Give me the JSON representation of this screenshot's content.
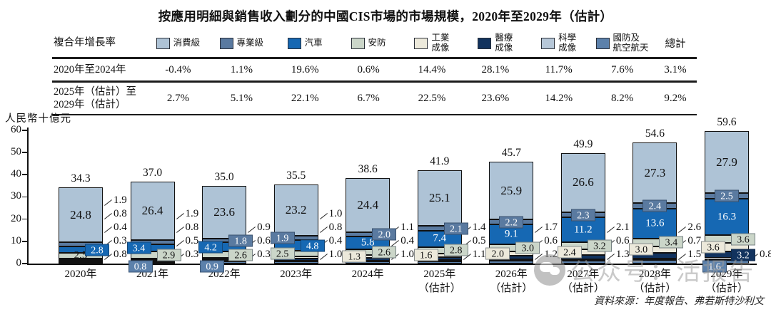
{
  "title": "按應用明細與銷售收入劃分的中國CIS市場的市場規模，2020年至2029年（估計）",
  "table": {
    "row_header_label": "複合年增長率",
    "total_label": "總計",
    "legend": [
      {
        "label": "消費級",
        "color": "#aec3d6"
      },
      {
        "label": "專業級",
        "color": "#5a7aa0"
      },
      {
        "label": "汽車",
        "color": "#1668b3"
      },
      {
        "label": "安防",
        "color": "#cbd6c9"
      },
      {
        "label": "工業\n成像",
        "color": "#ece9db"
      },
      {
        "label": "醫療\n成像",
        "color": "#12335e"
      },
      {
        "label": "科學\n成像",
        "color": "#b6c7d8"
      },
      {
        "label": "國防及\n航空航天",
        "color": "#5c81ab"
      }
    ],
    "rows": [
      {
        "label": "2020年至2024年",
        "values": [
          "-0.4%",
          "1.1%",
          "19.6%",
          "0.6%",
          "14.4%",
          "28.1%",
          "11.7%",
          "7.6%",
          "3.1%"
        ]
      },
      {
        "label": "2025年（估計）至\n2029年（估計）",
        "values": [
          "2.7%",
          "5.1%",
          "22.1%",
          "6.7%",
          "22.5%",
          "23.6%",
          "14.2%",
          "8.2%",
          "9.2%"
        ]
      }
    ]
  },
  "chart_data": {
    "type": "bar",
    "stacked": true,
    "title": "按應用明細與銷售收入劃分的中國CIS市場的市場規模，2020年至2029年（估計）",
    "ylabel": "人民幣十億元",
    "ylim": [
      0,
      60
    ],
    "yticks": [
      0,
      10,
      20,
      30,
      40,
      50,
      60
    ],
    "grid": false,
    "legend_position": "top",
    "categories": [
      "2020年",
      "2021年",
      "2022年",
      "2023年",
      "2024年",
      "2025年\n（估計）",
      "2026年\n（估計）",
      "2027年\n（估計）",
      "2028年\n（估計）",
      "2029年\n（估計）"
    ],
    "totals": [
      34.3,
      37.0,
      35.0,
      35.5,
      38.6,
      41.9,
      45.7,
      49.9,
      54.6,
      59.6
    ],
    "series": [
      {
        "key": "con",
        "name": "消費級",
        "color": "#aec3d6",
        "values": [
          24.8,
          26.4,
          23.6,
          23.2,
          24.4,
          25.1,
          25.9,
          26.6,
          27.3,
          27.9
        ]
      },
      {
        "key": "pro",
        "name": "專業級",
        "color": "#5a7aa0",
        "values": [
          1.9,
          1.9,
          1.8,
          1.9,
          2.0,
          2.1,
          2.2,
          2.3,
          2.4,
          2.5
        ]
      },
      {
        "key": "aut",
        "name": "汽車",
        "color": "#1668b3",
        "values": [
          2.8,
          3.4,
          4.2,
          4.8,
          5.8,
          7.4,
          9.1,
          11.2,
          13.6,
          16.3
        ]
      },
      {
        "key": "sec",
        "name": "安防",
        "color": "#cbd6c9",
        "values": [
          2.5,
          2.9,
          2.6,
          2.5,
          2.6,
          2.8,
          3.0,
          3.2,
          3.4,
          3.6
        ]
      },
      {
        "key": "ind",
        "name": "工業成像",
        "color": "#ece9db",
        "values": [
          0.8,
          0.8,
          0.9,
          1.0,
          1.3,
          1.6,
          2.0,
          2.4,
          3.0,
          3.6
        ]
      },
      {
        "key": "med",
        "name": "醫療成像",
        "color": "#12335e",
        "values": [
          0.4,
          0.5,
          0.6,
          0.8,
          1.1,
          1.4,
          1.7,
          2.1,
          2.6,
          3.2
        ]
      },
      {
        "key": "sci",
        "name": "科學成像",
        "color": "#b6c7d8",
        "values": [
          0.3,
          0.3,
          0.3,
          0.4,
          0.4,
          0.5,
          0.6,
          0.6,
          0.7,
          0.8
        ]
      },
      {
        "key": "def",
        "name": "國防及航空航天",
        "color": "#5c81ab",
        "values": [
          0.8,
          0.8,
          0.9,
          1.0,
          1.0,
          1.1,
          1.2,
          1.3,
          1.5,
          1.6
        ]
      }
    ],
    "annotations": [
      {
        "labels": [
          {
            "k": "con",
            "style": "plain"
          },
          {
            "k": "sec",
            "style": "plain"
          },
          {
            "k": "aut",
            "style": "box",
            "pos": "r"
          }
        ],
        "side": [
          "pro",
          "ind",
          "med",
          "sci",
          "def"
        ]
      },
      {
        "labels": [
          {
            "k": "con",
            "style": "plain"
          },
          {
            "k": "aut",
            "style": "box",
            "pos": "l"
          },
          {
            "k": "sec",
            "style": "box",
            "pos": "r"
          },
          {
            "k": "def",
            "style": "box",
            "pos": "b"
          }
        ],
        "side": [
          "pro",
          "ind",
          "med",
          "sci"
        ]
      },
      {
        "labels": [
          {
            "k": "con",
            "style": "plain"
          },
          {
            "k": "aut",
            "style": "box",
            "pos": "l"
          },
          {
            "k": "pro",
            "style": "box",
            "pos": "r"
          },
          {
            "k": "sec",
            "style": "box",
            "pos": "r"
          },
          {
            "k": "def",
            "style": "box",
            "pos": "b"
          }
        ],
        "side": [
          "ind",
          "med",
          "sci"
        ]
      },
      {
        "labels": [
          {
            "k": "con",
            "style": "plain"
          },
          {
            "k": "pro",
            "style": "box",
            "pos": "l"
          },
          {
            "k": "aut",
            "style": "box",
            "pos": "r"
          },
          {
            "k": "sec",
            "style": "box",
            "pos": "l"
          }
        ],
        "side": [
          "ind",
          "med",
          "sci",
          "def"
        ]
      },
      {
        "labels": [
          {
            "k": "con",
            "style": "plain"
          },
          {
            "k": "aut",
            "style": "plain"
          },
          {
            "k": "pro",
            "style": "box",
            "pos": "r"
          },
          {
            "k": "sec",
            "style": "box",
            "pos": "r"
          },
          {
            "k": "ind",
            "style": "box",
            "pos": "l"
          }
        ],
        "side": [
          "med",
          "sci",
          "def"
        ]
      },
      {
        "labels": [
          {
            "k": "con",
            "style": "plain"
          },
          {
            "k": "aut",
            "style": "plain"
          },
          {
            "k": "pro",
            "style": "box",
            "pos": "r"
          },
          {
            "k": "sec",
            "style": "box",
            "pos": "r"
          },
          {
            "k": "ind",
            "style": "box",
            "pos": "l"
          }
        ],
        "side": [
          "med",
          "sci",
          "def"
        ]
      },
      {
        "labels": [
          {
            "k": "con",
            "style": "plain"
          },
          {
            "k": "aut",
            "style": "plain"
          },
          {
            "k": "pro",
            "style": "box",
            "pos": "c"
          },
          {
            "k": "sec",
            "style": "box",
            "pos": "r"
          },
          {
            "k": "ind",
            "style": "box",
            "pos": "l"
          }
        ],
        "side": [
          "med",
          "sci",
          "def"
        ]
      },
      {
        "labels": [
          {
            "k": "con",
            "style": "plain"
          },
          {
            "k": "aut",
            "style": "plain"
          },
          {
            "k": "pro",
            "style": "box",
            "pos": "c"
          },
          {
            "k": "sec",
            "style": "box",
            "pos": "r"
          },
          {
            "k": "ind",
            "style": "box",
            "pos": "l"
          }
        ],
        "side": [
          "med",
          "sci",
          "def"
        ]
      },
      {
        "labels": [
          {
            "k": "con",
            "style": "plain"
          },
          {
            "k": "aut",
            "style": "plain"
          },
          {
            "k": "pro",
            "style": "box",
            "pos": "c"
          },
          {
            "k": "sec",
            "style": "box",
            "pos": "r"
          },
          {
            "k": "ind",
            "style": "box",
            "pos": "l"
          }
        ],
        "side": [
          "med",
          "sci",
          "def"
        ]
      },
      {
        "labels": [
          {
            "k": "con",
            "style": "plain"
          },
          {
            "k": "aut",
            "style": "plain"
          },
          {
            "k": "pro",
            "style": "box",
            "pos": "c"
          },
          {
            "k": "sec",
            "style": "box",
            "pos": "r"
          },
          {
            "k": "ind",
            "style": "box",
            "pos": "l"
          },
          {
            "k": "med",
            "style": "box",
            "pos": "r"
          },
          {
            "k": "def",
            "style": "box",
            "pos": "b"
          }
        ],
        "side": [
          "sci"
        ]
      }
    ],
    "source": "資料來源：年度報告、弗若斯特沙利文"
  },
  "watermark": {
    "text": "公众号：活报告"
  }
}
